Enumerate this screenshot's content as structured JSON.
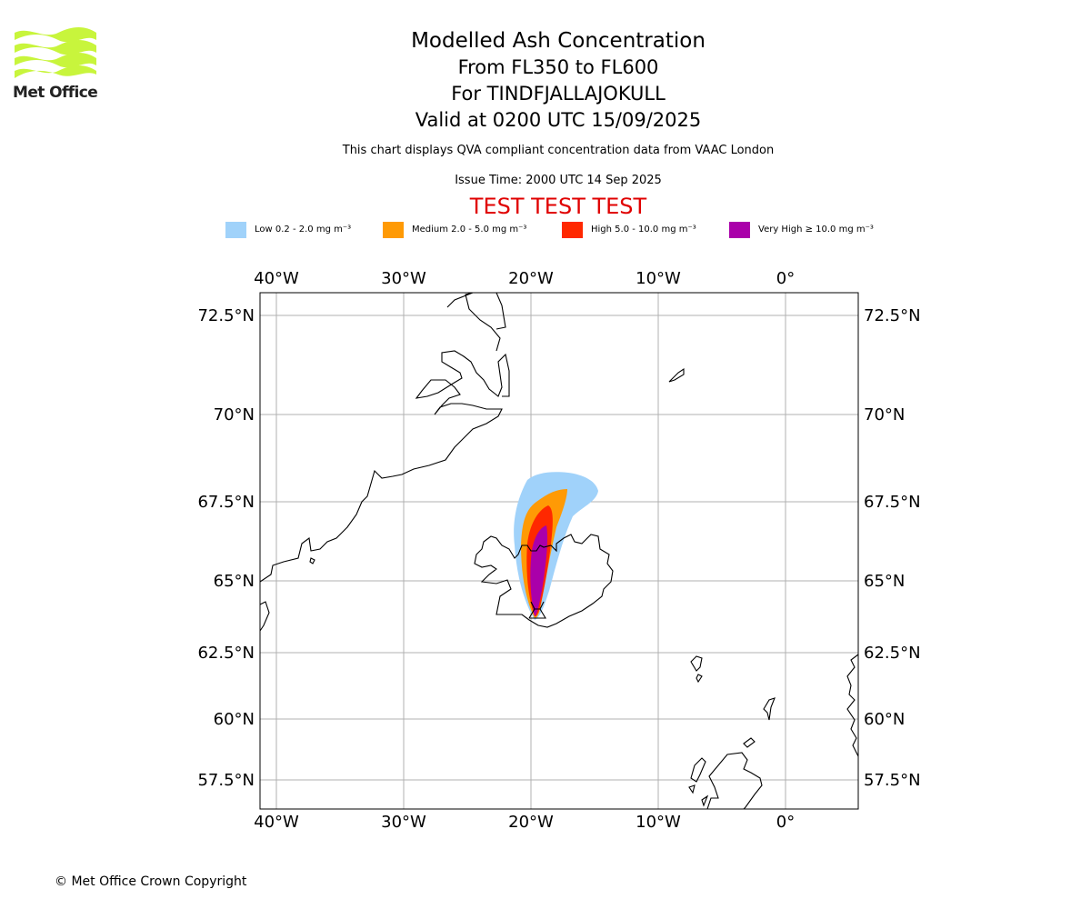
{
  "logo": {
    "text": "Met Office",
    "color": "#c8f53c"
  },
  "header": {
    "title": "Modelled Ash Concentration",
    "levels": "From FL350 to FL600",
    "volcano": "For TINDFJALLAJOKULL",
    "valid": "Valid at 0200 UTC 15/09/2025",
    "description": "This chart displays QVA compliant concentration data from VAAC London",
    "issue_time": "Issue Time: 2000 UTC 14 Sep 2025",
    "test_banner": "TEST TEST TEST"
  },
  "legend": [
    {
      "label": "Low 0.2 - 2.0 mg m⁻³",
      "color": "#a0d2fa"
    },
    {
      "label": "Medium 2.0 - 5.0 mg m⁻³",
      "color": "#ff9a05"
    },
    {
      "label": "High 5.0 - 10.0 mg m⁻³",
      "color": "#ff2800"
    },
    {
      "label": "Very High ≥ 10.0 mg m⁻³",
      "color": "#aa00aa"
    }
  ],
  "map": {
    "lon_labels": [
      "40°W",
      "30°W",
      "20°W",
      "10°W",
      "0°"
    ],
    "lat_labels": [
      "72.5°N",
      "70°N",
      "67.5°N",
      "65°N",
      "62.5°N",
      "60°N",
      "57.5°N"
    ]
  },
  "footer": {
    "copyright": "© Met Office Crown Copyright"
  }
}
